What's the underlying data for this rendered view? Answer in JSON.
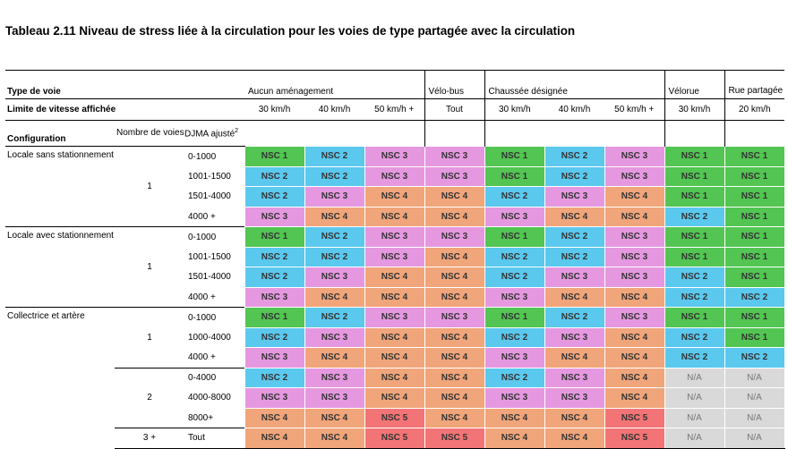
{
  "title": "Tableau 2.11 Niveau de stress liée à la circulation pour les voies de type partagée avec la circulation",
  "header": {
    "type_de_voie": "Type de voie",
    "groups": [
      "Aucun aménagement",
      "Vélo-bus",
      "Chaussée désignée",
      "Vélorue",
      "Rue partagée"
    ],
    "limite": "Limite de vitesse affichée",
    "speeds": [
      "30 km/h",
      "40 km/h",
      "50 km/h +",
      "Tout",
      "30 km/h",
      "40 km/h",
      "50 km/h +",
      "30 km/h",
      "20 km/h"
    ],
    "configuration": "Configuration",
    "nombre_de_voies": "Nombre de voies",
    "djma": "DJMA ajusté",
    "djma_sup": "2"
  },
  "sections": [
    {
      "label": "Locale sans stationnement",
      "groups": [
        {
          "lanes": "1",
          "rows": [
            {
              "djma": "0-1000",
              "v": [
                1,
                2,
                3,
                3,
                1,
                2,
                3,
                1,
                1
              ]
            },
            {
              "djma": "1001-1500",
              "v": [
                2,
                2,
                3,
                3,
                1,
                2,
                3,
                1,
                1
              ]
            },
            {
              "djma": "1501-4000",
              "v": [
                2,
                3,
                4,
                4,
                2,
                3,
                4,
                1,
                1
              ]
            },
            {
              "djma": "4000 +",
              "v": [
                3,
                4,
                4,
                4,
                3,
                4,
                4,
                2,
                1
              ]
            }
          ]
        }
      ]
    },
    {
      "label": "Locale avec stationnement",
      "groups": [
        {
          "lanes": "1",
          "rows": [
            {
              "djma": "0-1000",
              "v": [
                1,
                2,
                3,
                3,
                1,
                2,
                3,
                1,
                1
              ]
            },
            {
              "djma": "1001-1500",
              "v": [
                2,
                2,
                3,
                4,
                2,
                2,
                3,
                1,
                1
              ]
            },
            {
              "djma": "1501-4000",
              "v": [
                2,
                3,
                4,
                4,
                2,
                3,
                3,
                2,
                1
              ]
            },
            {
              "djma": "4000 +",
              "v": [
                3,
                4,
                4,
                4,
                3,
                4,
                4,
                2,
                2
              ]
            }
          ]
        }
      ]
    },
    {
      "label": "Collectrice et artère",
      "groups": [
        {
          "lanes": "1",
          "rows": [
            {
              "djma": "0-1000",
              "v": [
                1,
                2,
                3,
                3,
                1,
                2,
                3,
                1,
                1
              ]
            },
            {
              "djma": "1000-4000",
              "v": [
                2,
                3,
                4,
                4,
                2,
                3,
                4,
                2,
                1
              ]
            },
            {
              "djma": "4000 +",
              "v": [
                3,
                4,
                4,
                4,
                3,
                4,
                4,
                2,
                2
              ]
            }
          ]
        },
        {
          "lanes": "2",
          "rows": [
            {
              "djma": "0-4000",
              "v": [
                2,
                3,
                4,
                4,
                2,
                3,
                4,
                0,
                0
              ]
            },
            {
              "djma": "4000-8000",
              "v": [
                3,
                3,
                4,
                4,
                3,
                3,
                4,
                0,
                0
              ]
            },
            {
              "djma": "8000+",
              "v": [
                4,
                4,
                5,
                4,
                4,
                4,
                5,
                0,
                0
              ]
            }
          ]
        },
        {
          "lanes": "3 +",
          "rows": [
            {
              "djma": "Tout",
              "v": [
                4,
                4,
                5,
                5,
                4,
                4,
                5,
                0,
                0
              ]
            }
          ]
        }
      ]
    }
  ],
  "legend": {
    "1": "NSC 1",
    "2": "NSC 2",
    "3": "NSC 3",
    "4": "NSC 4",
    "5": "NSC 5",
    "0": "N/A"
  },
  "colors": {
    "nsc1": "#52c552",
    "nsc2": "#5bc8ee",
    "nsc3": "#e598e0",
    "nsc4": "#f0a57a",
    "nsc5": "#f27476",
    "na": "#d9d9d9"
  }
}
